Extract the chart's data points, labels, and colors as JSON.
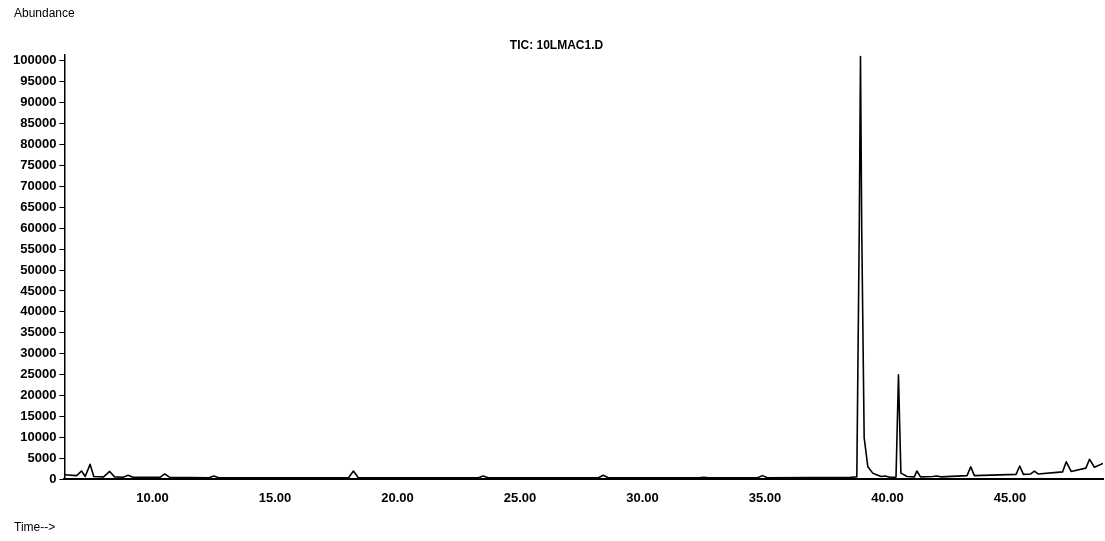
{
  "chart_data": {
    "type": "line",
    "title": "TIC: 10LMAC1.D",
    "xlabel": "Time-->",
    "ylabel": "Abundance",
    "x": [
      6.4,
      6.9,
      7.1,
      7.25,
      7.45,
      7.6,
      8.0,
      8.25,
      8.45,
      8.8,
      9.0,
      9.2,
      10.3,
      10.5,
      10.7,
      12.3,
      12.5,
      12.7,
      18.0,
      18.2,
      18.4,
      23.3,
      23.5,
      23.7,
      28.2,
      28.4,
      28.6,
      32.3,
      32.5,
      32.7,
      34.7,
      34.9,
      35.1,
      38.5,
      38.75,
      38.85,
      38.9,
      38.95,
      39.05,
      39.2,
      39.4,
      39.6,
      39.75,
      39.9,
      40.1,
      40.35,
      40.45,
      40.55,
      40.8,
      41.1,
      41.2,
      41.35,
      41.85,
      42.0,
      42.2,
      43.25,
      43.4,
      43.55,
      45.25,
      45.4,
      45.55,
      45.85,
      46.0,
      46.15,
      47.15,
      47.3,
      47.5,
      48.1,
      48.25,
      48.45,
      48.8
    ],
    "series": [
      {
        "color": "#000000",
        "values": [
          1100,
          900,
          2000,
          700,
          3600,
          700,
          600,
          1900,
          600,
          500,
          1000,
          500,
          500,
          1300,
          500,
          400,
          800,
          400,
          400,
          2000,
          400,
          400,
          800,
          400,
          400,
          1000,
          400,
          400,
          500,
          400,
          400,
          900,
          400,
          500,
          600,
          60000,
          101000,
          60000,
          10000,
          3000,
          1500,
          1000,
          700,
          800,
          500,
          500,
          25000,
          1500,
          700,
          600,
          2000,
          600,
          700,
          800,
          600,
          900,
          3000,
          900,
          1200,
          3200,
          1200,
          1300,
          2000,
          1300,
          1800,
          4200,
          1900,
          2700,
          4800,
          2900,
          3800
        ]
      }
    ],
    "xlim": [
      6.4,
      48.8
    ],
    "ylim": [
      0,
      101500
    ],
    "xticks": [
      {
        "value": 10,
        "label": "10.00"
      },
      {
        "value": 15,
        "label": "15.00"
      },
      {
        "value": 20,
        "label": "20.00"
      },
      {
        "value": 25,
        "label": "25.00"
      },
      {
        "value": 30,
        "label": "30.00"
      },
      {
        "value": 35,
        "label": "35.00"
      },
      {
        "value": 40,
        "label": "40.00"
      },
      {
        "value": 45,
        "label": "45.00"
      }
    ],
    "yticks": [
      0,
      5000,
      10000,
      15000,
      20000,
      25000,
      30000,
      35000,
      40000,
      45000,
      50000,
      55000,
      60000,
      65000,
      70000,
      75000,
      80000,
      85000,
      90000,
      95000,
      100000
    ],
    "grid": false,
    "legend": false,
    "marker": "none",
    "line_style": "solid"
  }
}
